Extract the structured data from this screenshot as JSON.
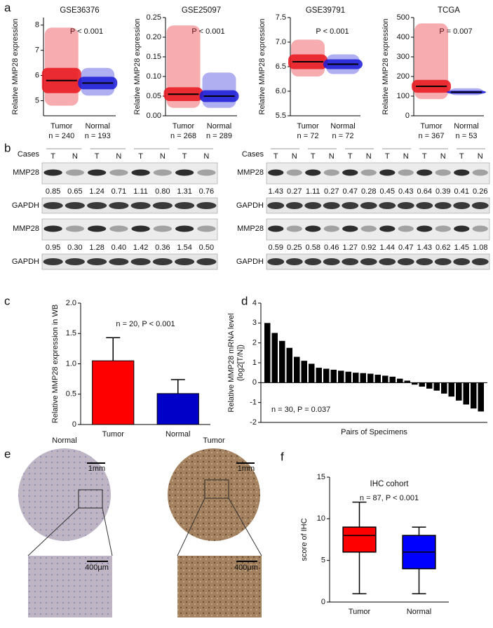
{
  "panel_letters": [
    "a",
    "b",
    "c",
    "d",
    "e",
    "f"
  ],
  "chart_data": [
    {
      "type": "dot",
      "title": "GSE36376",
      "annotation": "P < 0.001",
      "ylabel": "Relative MMP28 expression",
      "categories": [
        "Tumor",
        "Normal"
      ],
      "n_labels": [
        "n = 240",
        "n = 193"
      ],
      "values": [
        5.8,
        5.7
      ],
      "mins": [
        4.8,
        5.2
      ],
      "maxs": [
        7.9,
        6.3
      ],
      "colors": [
        "#e8141c",
        "#1a1ad6"
      ],
      "ylim": [
        4.4,
        8.3
      ],
      "yticks": [
        5,
        6,
        7,
        8
      ]
    },
    {
      "type": "dot",
      "title": "GSE25097",
      "annotation": "P < 0.001",
      "ylabel": "Relative MMP28 expression",
      "categories": [
        "Tumor",
        "Normal"
      ],
      "n_labels": [
        "n = 268",
        "n = 289"
      ],
      "values": [
        0.055,
        0.05
      ],
      "mins": [
        0.02,
        0.02
      ],
      "maxs": [
        0.23,
        0.11
      ],
      "colors": [
        "#e8141c",
        "#1a1ad6"
      ],
      "ylim": [
        0,
        0.25
      ],
      "yticks": [
        {
          "value": 0,
          "label": "0.00"
        },
        {
          "value": 0.05,
          "label": "0.05"
        },
        {
          "value": 0.1,
          "label": "0.10"
        },
        {
          "value": 0.15,
          "label": "0.15"
        },
        {
          "value": 0.2,
          "label": "0.20"
        },
        {
          "value": 0.25,
          "label": "0.25"
        }
      ]
    },
    {
      "type": "dot",
      "title": "GSE39791",
      "annotation": "P < 0.001",
      "ylabel": "Relative MMP28 expression",
      "categories": [
        "Tumor",
        "Normal"
      ],
      "n_labels": [
        "n = 72",
        "n = 72"
      ],
      "values": [
        6.6,
        6.55
      ],
      "mins": [
        6.3,
        6.35
      ],
      "maxs": [
        7.05,
        6.75
      ],
      "colors": [
        "#e8141c",
        "#1a1ad6"
      ],
      "ylim": [
        5.5,
        7.5
      ],
      "yticks": [
        5.5,
        {
          "value": 6,
          "label": "6.0"
        },
        6.5,
        {
          "value": 7,
          "label": "7.0"
        },
        7.5
      ]
    },
    {
      "type": "dot",
      "title": "TCGA",
      "annotation": "P = 0.007",
      "ylabel": "Relative MMP28 expression",
      "categories": [
        "Tumor",
        "Normal"
      ],
      "n_labels": [
        "n = 367",
        "n = 53"
      ],
      "values": [
        150,
        120
      ],
      "mins": [
        85,
        105
      ],
      "maxs": [
        470,
        140
      ],
      "colors": [
        "#e8141c",
        "#1a1ad6"
      ],
      "ylim": [
        0,
        500
      ],
      "yticks": [
        0,
        100,
        200,
        300,
        400,
        500
      ]
    },
    {
      "type": "bar",
      "annotation": "n = 20,  P < 0.001",
      "ylabel": "Relative MMP28 expression in WB",
      "categories": [
        "Tumor",
        "Normal"
      ],
      "values": [
        1.05,
        0.51
      ],
      "errors": [
        0.38,
        0.23
      ],
      "colors": [
        "#ff0000",
        "#0000c8"
      ],
      "ylim": [
        0,
        2
      ],
      "yticks": [
        0,
        0.5,
        {
          "value": 1,
          "label": "1.0"
        },
        1.5,
        {
          "value": 2,
          "label": "2.0"
        }
      ]
    },
    {
      "type": "waterfall",
      "annotation": "n = 30, P = 0.037",
      "ylabel": [
        "Relative MMP28 mRNA level",
        "(log2[T/N])"
      ],
      "xlabel": "Pairs of Specimens",
      "values": [
        3.0,
        2.5,
        2.1,
        1.75,
        1.3,
        1.1,
        0.95,
        0.75,
        0.7,
        0.65,
        0.6,
        0.55,
        0.5,
        0.48,
        0.45,
        0.4,
        0.35,
        0.3,
        0.2,
        0.1,
        -0.1,
        -0.2,
        -0.3,
        -0.4,
        -0.55,
        -0.7,
        -0.9,
        -1.1,
        -1.3,
        -1.45
      ],
      "color": "#000000",
      "ylim": [
        -2,
        4
      ],
      "yticks": [
        -2,
        -1,
        0,
        1,
        2,
        3,
        4
      ]
    },
    {
      "type": "box",
      "title": "IHC cohort",
      "annotation": "n = 87,  P < 0.001",
      "ylabel": "score of IHC",
      "categories": [
        "Tumor",
        "Normal"
      ],
      "mins": [
        1,
        1
      ],
      "q1": [
        6,
        4
      ],
      "medians": [
        8,
        6
      ],
      "q3": [
        9,
        8
      ],
      "maxs": [
        12,
        9
      ],
      "colors": [
        "#ff0000",
        "#0000ff"
      ],
      "ylim": [
        0,
        15
      ],
      "yticks": [
        0,
        5,
        10,
        15
      ]
    }
  ],
  "blots": {
    "cases": "Cases",
    "lanes": [
      "T",
      "N"
    ],
    "target": "MMP28",
    "control": "GAPDH",
    "panels": [
      {
        "values": [
          "0.85",
          "0.65",
          "1.24",
          "0.71",
          "1.11",
          "0.80",
          "1.31",
          "0.76"
        ]
      },
      {
        "values": [
          "1.43",
          "0.27",
          "1.11",
          "0.27",
          "0.47",
          "0.28",
          "0.45",
          "0.43",
          "0.64",
          "0.39",
          "0.41",
          "0.26"
        ]
      },
      {
        "values": [
          "0.95",
          "0.30",
          "1.28",
          "0.40",
          "1.42",
          "0.36",
          "1.54",
          "0.50"
        ]
      },
      {
        "values": [
          "0.59",
          "0.25",
          "0.58",
          "0.46",
          "1.27",
          "0.92",
          "1.44",
          "0.47",
          "1.43",
          "0.62",
          "1.45",
          "1.08"
        ]
      }
    ]
  },
  "ihc": {
    "normal": "Normal",
    "tumor": "Tumor",
    "scale_large": "1mm",
    "scale_small": "400μm"
  }
}
